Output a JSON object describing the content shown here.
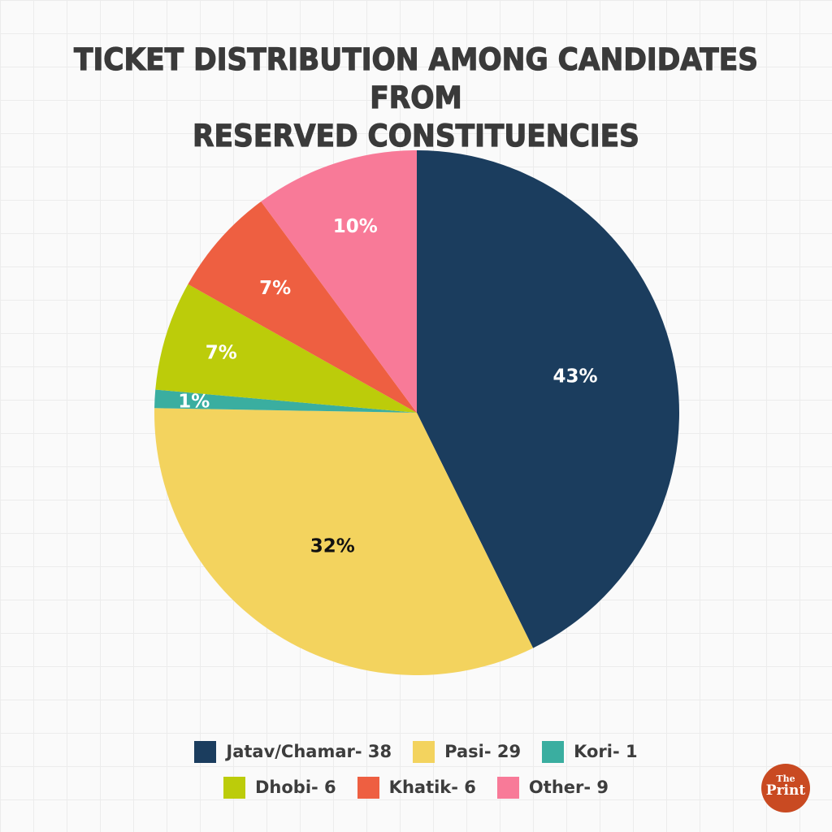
{
  "title_line1": "TICKET DISTRIBUTION AMONG CANDIDATES FROM",
  "title_line2": "RESERVED CONSTITUENCIES",
  "logo": {
    "the": "The",
    "print": "Print"
  },
  "chart_data": {
    "type": "pie",
    "title": "TICKET DISTRIBUTION AMONG CANDIDATES FROM RESERVED CONSTITUENCIES",
    "start": "top",
    "direction": "clockwise",
    "legend_position": "bottom",
    "slices": [
      {
        "name": "Jatav/Chamar",
        "value": 38,
        "percent_label": "43%",
        "legend": "Jatav/Chamar- 38",
        "color": "#1b3d5e",
        "label_color": "#ffffff"
      },
      {
        "name": "Pasi",
        "value": 29,
        "percent_label": "32%",
        "legend": "Pasi- 29",
        "color": "#f3d35e",
        "label_color": "#111111"
      },
      {
        "name": "Kori",
        "value": 1,
        "percent_label": "1%",
        "legend": "Kori- 1",
        "color": "#3aaea0",
        "label_color": "#ffffff"
      },
      {
        "name": "Dhobi",
        "value": 6,
        "percent_label": "7%",
        "legend": "Dhobi- 6",
        "color": "#bccc0a",
        "label_color": "#ffffff"
      },
      {
        "name": "Khatik",
        "value": 6,
        "percent_label": "7%",
        "legend": "Khatik- 6",
        "color": "#ee5f41",
        "label_color": "#ffffff"
      },
      {
        "name": "Other",
        "value": 9,
        "percent_label": "10%",
        "legend": "Other- 9",
        "color": "#f87a98",
        "label_color": "#ffffff"
      }
    ]
  }
}
